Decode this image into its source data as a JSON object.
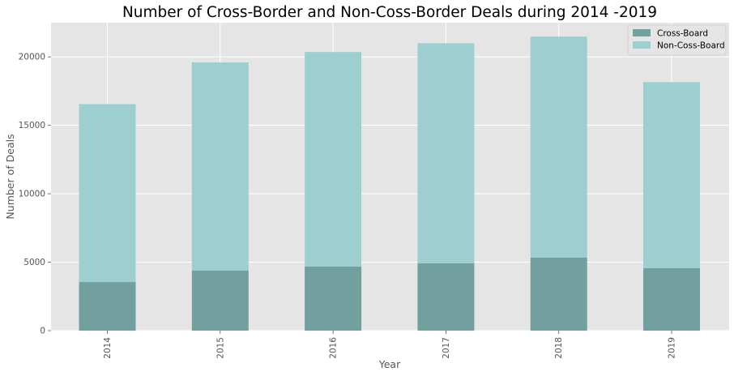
{
  "chart_data": {
    "type": "bar",
    "stacked": true,
    "title": "Number of Cross-Border and Non-Coss-Border Deals during 2014 -2019",
    "xlabel": "Year",
    "ylabel": "Number of Deals",
    "categories": [
      "2014",
      "2015",
      "2016",
      "2017",
      "2018",
      "2019"
    ],
    "series": [
      {
        "name": "Cross-Board",
        "values": [
          3550,
          4400,
          4680,
          4930,
          5330,
          4560
        ],
        "color": "#71a09e"
      },
      {
        "name": "Non-Coss-Board",
        "values": [
          13000,
          15200,
          15680,
          16070,
          16150,
          13600
        ],
        "color": "#9dcfd0"
      }
    ],
    "ylim": [
      0,
      22500
    ],
    "yticks": [
      0,
      5000,
      10000,
      15000,
      20000
    ],
    "grid": true,
    "legend": "top-right",
    "background": "#e5e5e5",
    "grid_color": "#ffffff"
  }
}
